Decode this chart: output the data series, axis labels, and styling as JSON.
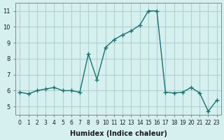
{
  "xlabel": "Humidex (Indice chaleur)",
  "ylabel": "",
  "background_color": "#d6f0f0",
  "grid_color": "#b0d0d0",
  "line_color": "#1a7070",
  "x_data": [
    0,
    1,
    2,
    3,
    4,
    5,
    6,
    7,
    8,
    9,
    10,
    11,
    12,
    13,
    14,
    15,
    16,
    17,
    18,
    19,
    20,
    21,
    22,
    23
  ],
  "y_data": [
    5.9,
    5.8,
    6.0,
    6.1,
    6.2,
    6.0,
    6.0,
    5.9,
    8.3,
    6.7,
    8.7,
    9.2,
    9.5,
    9.75,
    10.1,
    11.0,
    11.0,
    5.9,
    5.85,
    5.9,
    6.2,
    5.85,
    4.7,
    5.4
  ],
  "xlim": [
    -0.5,
    23.5
  ],
  "ylim": [
    4.5,
    11.5
  ],
  "yticks": [
    5,
    6,
    7,
    8,
    9,
    10,
    11
  ],
  "xticks": [
    0,
    1,
    2,
    3,
    4,
    5,
    6,
    7,
    8,
    9,
    10,
    11,
    12,
    13,
    14,
    15,
    16,
    17,
    18,
    19,
    20,
    21,
    22,
    23
  ]
}
